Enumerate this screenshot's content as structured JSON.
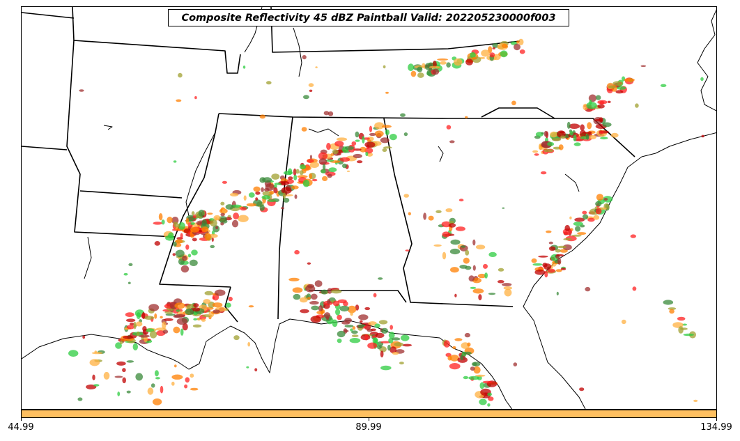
{
  "title": "Composite Reflectivity 45 dBZ Paintball Valid: 202205230000f003",
  "colorbar": {
    "color": "#ffc060",
    "ticks": [
      "44.99",
      "89.99",
      "134.99"
    ]
  },
  "map": {
    "region": "Southeastern United States",
    "layers": [
      "state-borders",
      "coastline",
      "reflectivity-paintball"
    ],
    "member_colors": [
      "#ff2020",
      "#ff7f00",
      "#2ecc40",
      "#a0a030",
      "#a03030",
      "#3a8a3a",
      "#ffb040",
      "#c00000"
    ]
  }
}
